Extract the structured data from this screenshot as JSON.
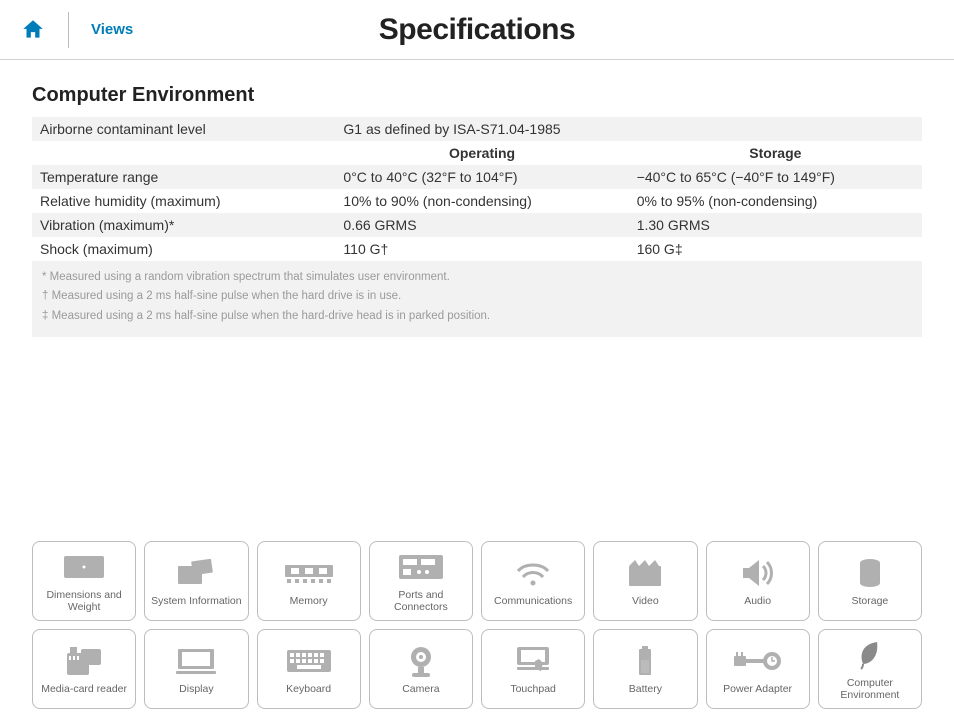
{
  "colors": {
    "link": "#007db8",
    "text": "#333333",
    "shade": "#f2f2f2",
    "border": "#bdbdbd",
    "icon": "#b0b0b0"
  },
  "header": {
    "views_label": "Views",
    "page_title": "Specifications"
  },
  "section": {
    "title": "Computer Environment",
    "airborne_row": {
      "label": "Airborne contaminant level",
      "value": "G1 as defined by ISA-S71.04-1985"
    },
    "col_headers": {
      "operating": "Operating",
      "storage": "Storage"
    },
    "rows": [
      {
        "label": "Temperature range",
        "operating": "0°C to 40°C (32°F to 104°F)",
        "storage": "−40°C to 65°C (−40°F to 149°F)",
        "shade": true
      },
      {
        "label": "Relative humidity (maximum)",
        "operating": "10% to 90% (non-condensing)",
        "storage": "0% to 95% (non-condensing)",
        "shade": false
      },
      {
        "label": "Vibration (maximum)*",
        "operating": "0.66 GRMS",
        "storage": "1.30 GRMS",
        "shade": true
      },
      {
        "label": "Shock (maximum)",
        "operating": "110 G†",
        "storage": "160 G‡",
        "shade": false
      }
    ],
    "footnotes": [
      "* Measured using a random vibration spectrum that simulates user environment.",
      "† Measured using a 2 ms half-sine pulse when the hard drive is in use.",
      "‡ Measured using a 2 ms half-sine pulse when the hard-drive head is in parked position."
    ]
  },
  "nav": {
    "items": [
      {
        "label": "Dimensions and Weight",
        "icon": "dimensions"
      },
      {
        "label": "System Information",
        "icon": "sysinfo"
      },
      {
        "label": "Memory",
        "icon": "memory"
      },
      {
        "label": "Ports and Connectors",
        "icon": "ports"
      },
      {
        "label": "Communications",
        "icon": "wifi"
      },
      {
        "label": "Video",
        "icon": "video"
      },
      {
        "label": "Audio",
        "icon": "audio"
      },
      {
        "label": "Storage",
        "icon": "storage"
      },
      {
        "label": "Media-card reader",
        "icon": "sdcard"
      },
      {
        "label": "Display",
        "icon": "display"
      },
      {
        "label": "Keyboard",
        "icon": "keyboard"
      },
      {
        "label": "Camera",
        "icon": "camera"
      },
      {
        "label": "Touchpad",
        "icon": "touchpad"
      },
      {
        "label": "Battery",
        "icon": "battery"
      },
      {
        "label": "Power Adapter",
        "icon": "power"
      },
      {
        "label": "Computer Environment",
        "icon": "leaf",
        "active": true
      }
    ]
  }
}
